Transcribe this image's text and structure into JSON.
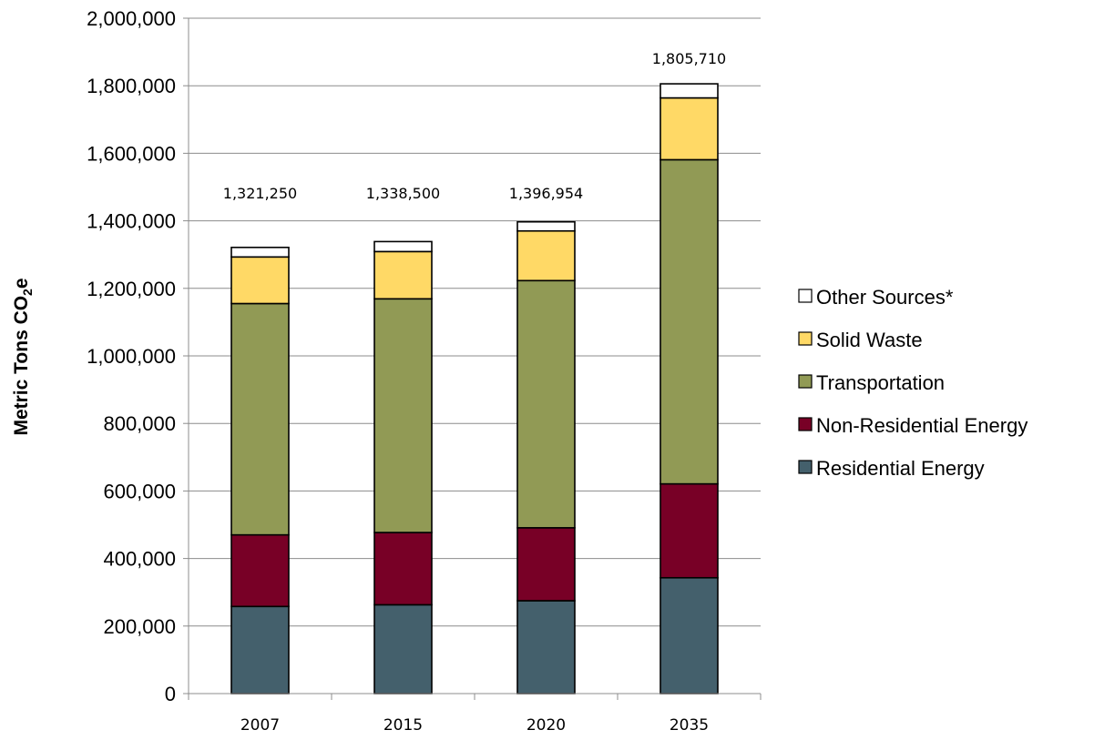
{
  "chart_data": {
    "type": "bar",
    "stacked": true,
    "title": "",
    "xlabel": "",
    "ylabel": "Metric Tons CO",
    "ylabel_subscript": "2",
    "ylabel_suffix": "e",
    "categories": [
      "2007",
      "2015",
      "2020",
      "2035"
    ],
    "ylim": [
      0,
      2000000
    ],
    "ytick_step": 200000,
    "ytick_labels": [
      "0",
      "200,000",
      "400,000",
      "600,000",
      "800,000",
      "1,000,000",
      "1,200,000",
      "1,400,000",
      "1,600,000",
      "1,800,000",
      "2,000,000"
    ],
    "grid": true,
    "legend_position": "right",
    "series": [
      {
        "name": "Residential Energy",
        "color": "#44606c",
        "values": [
          258000,
          263000,
          275000,
          343000
        ]
      },
      {
        "name": "Non-Residential Energy",
        "color": "#780026",
        "values": [
          212000,
          214000,
          216000,
          278000
        ]
      },
      {
        "name": "Transportation",
        "color": "#919a55",
        "values": [
          685000,
          692000,
          732000,
          960000
        ]
      },
      {
        "name": "Solid Waste",
        "color": "#ffd966",
        "values": [
          138000,
          140000,
          147000,
          183000
        ]
      },
      {
        "name": "Other Sources*",
        "color": "#ffffff",
        "values": [
          28250,
          29500,
          26954,
          41710
        ]
      }
    ],
    "totals": [
      "1,321,250",
      "1,338,500",
      "1,396,954",
      "1,805,710"
    ]
  }
}
